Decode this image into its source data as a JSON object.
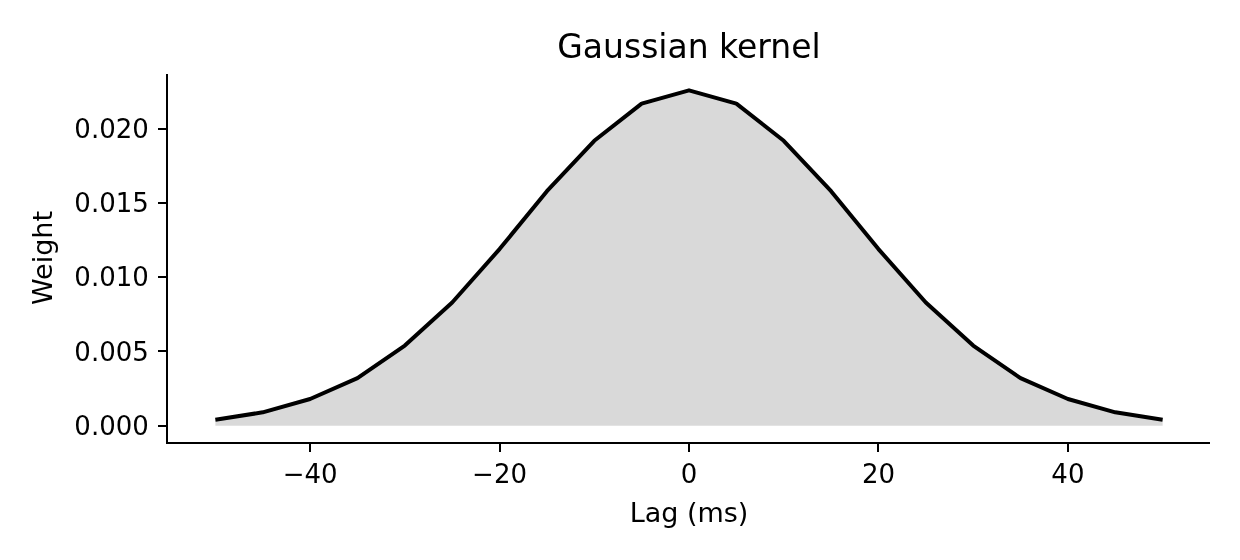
{
  "chart_data": {
    "type": "area",
    "title": "Gaussian kernel",
    "xlabel": "Lag (ms)",
    "ylabel": "Weight",
    "x": [
      -50,
      -45,
      -40,
      -35,
      -30,
      -25,
      -20,
      -15,
      -10,
      -5,
      0,
      5,
      10,
      15,
      20,
      25,
      30,
      35,
      40,
      45,
      50
    ],
    "values": [
      0.0004,
      0.0009,
      0.0018,
      0.0032,
      0.0054,
      0.0083,
      0.0119,
      0.0158,
      0.0192,
      0.0217,
      0.0226,
      0.0217,
      0.0192,
      0.0158,
      0.0119,
      0.0083,
      0.0054,
      0.0032,
      0.0018,
      0.0009,
      0.0004
    ],
    "color": "#000000",
    "xlim": [
      -55,
      55
    ],
    "ylim": [
      -0.0011,
      0.0237
    ],
    "xticks": [
      {
        "value": -40,
        "label": "−40"
      },
      {
        "value": -20,
        "label": "−20"
      },
      0,
      20,
      40
    ],
    "yticks": [
      {
        "value": 0,
        "label": "0.000"
      },
      0.005,
      {
        "value": 0.01,
        "label": "0.010"
      },
      0.015,
      {
        "value": 0.02,
        "label": "0.020"
      }
    ],
    "line_style": "solid"
  }
}
